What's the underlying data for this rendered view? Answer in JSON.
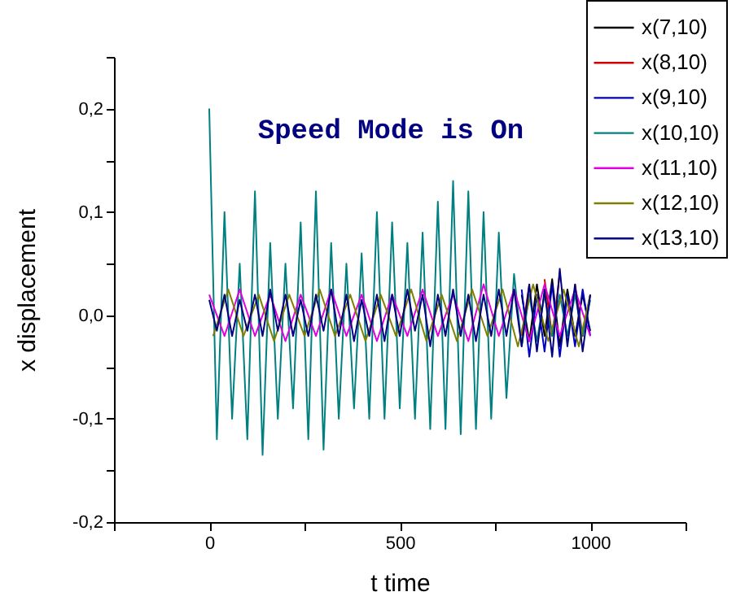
{
  "chart_data": {
    "type": "line",
    "xlabel": "t time",
    "ylabel": "x displacement",
    "xlim": [
      -250,
      1250
    ],
    "ylim": [
      -0.2,
      0.25
    ],
    "xticks": [
      {
        "value": -250,
        "label": null
      },
      0,
      {
        "value": 250,
        "label": null
      },
      500,
      {
        "value": 750,
        "label": null
      },
      1000,
      {
        "value": 1250,
        "label": null
      }
    ],
    "yticks": [
      {
        "value": -0.2,
        "label": "-0,2"
      },
      {
        "value": -0.15,
        "label": null
      },
      {
        "value": -0.1,
        "label": "-0,1"
      },
      {
        "value": -0.05,
        "label": null
      },
      {
        "value": 0,
        "label": "0,0"
      },
      {
        "value": 0.05,
        "label": null
      },
      {
        "value": 0.1,
        "label": "0,1"
      },
      {
        "value": 0.15,
        "label": null
      },
      {
        "value": 0.2,
        "label": "0,2"
      },
      {
        "value": 0.25,
        "label": null
      }
    ],
    "grid": false,
    "legend": "top right",
    "line_style": "solid",
    "marker": "none",
    "annotations": [
      "Speed Mode is On"
    ],
    "series": [
      {
        "name": "x(7,10)",
        "color": "#000000",
        "x": [
          820,
          840,
          860,
          880,
          900,
          920,
          940,
          960,
          980,
          1000
        ],
        "values": [
          0.02,
          -0.025,
          0.03,
          -0.02,
          0.035,
          -0.03,
          0.025,
          -0.02,
          0.02,
          -0.015
        ]
      },
      {
        "name": "x(8,10)",
        "color": "#d40000",
        "x": [
          820,
          840,
          860,
          880,
          900,
          920,
          940,
          960,
          980,
          1000
        ],
        "values": [
          -0.02,
          0.03,
          null,
          0.035,
          -0.02,
          0.04,
          null,
          0.03,
          -0.02,
          0.02
        ]
      },
      {
        "name": "x(9,10)",
        "color": "#0000c0",
        "x": [
          820,
          840,
          860,
          880,
          900,
          920,
          940,
          960,
          980,
          1000
        ],
        "values": [
          0.025,
          -0.04,
          0.02,
          -0.035,
          0.03,
          -0.04,
          0.02,
          -0.03,
          0.025,
          -0.02
        ]
      },
      {
        "name": "x(10,10)",
        "color": "#008080",
        "x": [
          0,
          20,
          40,
          60,
          80,
          100,
          120,
          140,
          160,
          180,
          200,
          220,
          240,
          260,
          280,
          300,
          320,
          340,
          360,
          380,
          400,
          420,
          440,
          460,
          480,
          500,
          520,
          540,
          560,
          580,
          600,
          620,
          640,
          660,
          680,
          700,
          720,
          740,
          760,
          780,
          800,
          820,
          840,
          860,
          880,
          900,
          920,
          940,
          960,
          980,
          1000
        ],
        "values": [
          0.2,
          -0.12,
          0.1,
          -0.1,
          0.05,
          -0.12,
          0.12,
          -0.135,
          0.07,
          -0.1,
          0.05,
          -0.09,
          0.09,
          -0.12,
          0.12,
          -0.13,
          0.07,
          -0.1,
          0.05,
          -0.09,
          0.06,
          -0.1,
          0.1,
          -0.1,
          0.09,
          -0.09,
          0.07,
          -0.1,
          0.08,
          -0.11,
          0.11,
          -0.11,
          0.13,
          -0.115,
          0.12,
          -0.11,
          0.1,
          -0.1,
          0.08,
          -0.08,
          0.04,
          -0.03,
          0.02,
          -0.025,
          0.02,
          -0.02,
          0.02,
          -0.02,
          0.02,
          -0.02,
          0.015
        ]
      },
      {
        "name": "x(11,10)",
        "color": "#e000e0",
        "x": [
          0,
          40,
          80,
          120,
          160,
          200,
          240,
          280,
          320,
          360,
          400,
          440,
          480,
          520,
          560,
          600,
          640,
          680,
          720,
          760,
          800,
          840,
          880,
          920,
          960,
          1000
        ],
        "values": [
          0.02,
          -0.02,
          0.025,
          -0.02,
          0.02,
          -0.025,
          0.02,
          -0.02,
          0.025,
          -0.02,
          0.02,
          -0.025,
          0.02,
          -0.02,
          0.025,
          -0.02,
          0.02,
          -0.025,
          0.03,
          -0.02,
          0.025,
          -0.025,
          0.03,
          -0.02,
          0.025,
          -0.02
        ]
      },
      {
        "name": "x(12,10)",
        "color": "#808000",
        "x": [
          10,
          50,
          90,
          130,
          170,
          210,
          250,
          290,
          330,
          370,
          410,
          450,
          490,
          530,
          570,
          610,
          650,
          690,
          730,
          770,
          810,
          850,
          890,
          930,
          970,
          1000
        ],
        "values": [
          -0.02,
          0.025,
          -0.02,
          0.02,
          -0.025,
          0.02,
          -0.02,
          0.025,
          -0.02,
          0.02,
          -0.025,
          0.02,
          -0.02,
          0.025,
          -0.025,
          0.02,
          -0.025,
          0.025,
          -0.02,
          0.025,
          -0.03,
          0.03,
          -0.025,
          0.025,
          -0.03,
          0.02
        ]
      },
      {
        "name": "x(13,10)",
        "color": "#000080",
        "x": [
          0,
          20,
          40,
          60,
          80,
          100,
          120,
          140,
          160,
          180,
          200,
          220,
          240,
          260,
          280,
          300,
          320,
          340,
          360,
          380,
          400,
          420,
          440,
          460,
          480,
          500,
          520,
          540,
          560,
          580,
          600,
          620,
          640,
          660,
          680,
          700,
          720,
          740,
          760,
          780,
          800,
          820,
          840,
          860,
          880,
          900,
          920,
          940,
          960,
          980,
          1000
        ],
        "values": [
          0.015,
          -0.015,
          0.02,
          -0.02,
          0.015,
          -0.015,
          0.02,
          -0.02,
          0.025,
          -0.015,
          0.02,
          -0.02,
          0.015,
          -0.02,
          0.02,
          -0.015,
          0.025,
          -0.02,
          0.02,
          -0.025,
          0.015,
          -0.02,
          0.02,
          -0.025,
          0.02,
          -0.02,
          0.025,
          -0.015,
          0.02,
          -0.03,
          0.02,
          -0.02,
          0.025,
          -0.02,
          0.02,
          -0.025,
          0.02,
          -0.02,
          0.025,
          -0.02,
          0.025,
          -0.03,
          0.03,
          -0.035,
          0.025,
          -0.04,
          0.045,
          -0.03,
          0.03,
          -0.035,
          0.02
        ]
      }
    ]
  }
}
